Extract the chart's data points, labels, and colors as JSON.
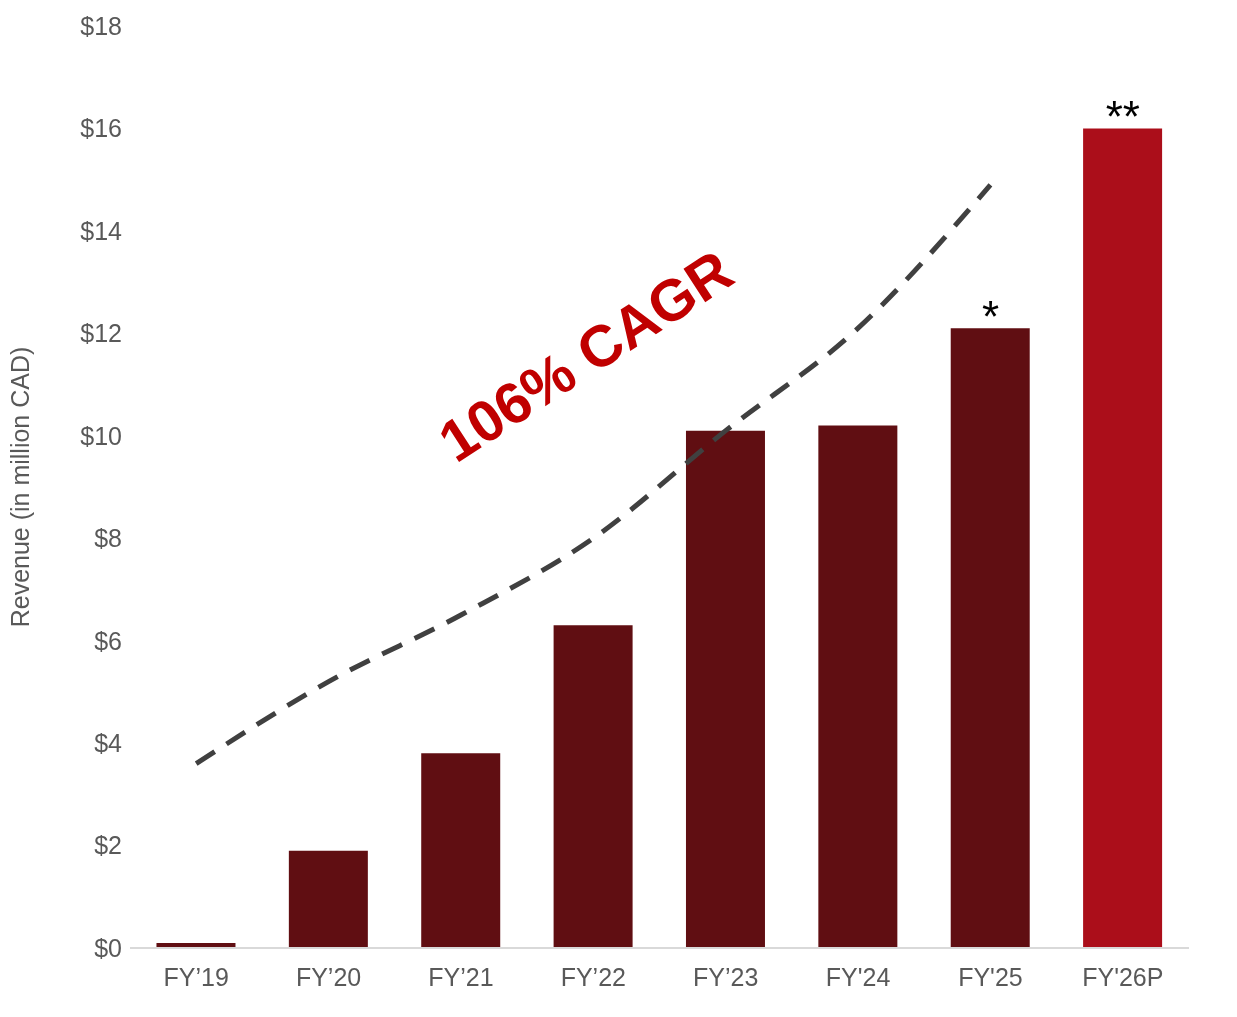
{
  "chart_data": {
    "type": "bar",
    "ylabel": "Revenue (in million CAD)",
    "categories": [
      "FY’19",
      "FY’20",
      "FY’21",
      "FY’22",
      "FY’23",
      "FY'24",
      "FY'25",
      "FY'26P"
    ],
    "series": [
      {
        "colors": [
          "#600e12",
          "#600e12",
          "#600e12",
          "#600e12",
          "#600e12",
          "#600e12",
          "#600e12",
          "#ab0e1a"
        ],
        "values": [
          0.1,
          1.9,
          3.8,
          6.3,
          10.1,
          10.2,
          12.1,
          16.0
        ]
      },
      {
        "type": "line",
        "color": "#404040",
        "line_style": "dashed",
        "values": [
          3.6,
          5.2,
          6.5,
          8.0,
          10.1,
          12.1,
          14.9,
          null
        ]
      }
    ],
    "ylim": [
      0,
      18
    ],
    "yticks": [
      {
        "value": 0,
        "label": "$0"
      },
      {
        "value": 2,
        "label": "$2"
      },
      {
        "value": 4,
        "label": "$4"
      },
      {
        "value": 6,
        "label": "$6"
      },
      {
        "value": 8,
        "label": "$8"
      },
      {
        "value": 10,
        "label": "$10"
      },
      {
        "value": 12,
        "label": "$12"
      },
      {
        "value": 14,
        "label": "$14"
      },
      {
        "value": 16,
        "label": "$16"
      },
      {
        "value": 18,
        "label": "$18"
      }
    ],
    "grid": false,
    "legend": false,
    "marker": "none",
    "annotations": [
      "106% CAGR",
      {
        "text": "*",
        "x": "FY'25",
        "y": 12.1
      },
      {
        "text": "**",
        "x": "FY'26P",
        "y": 16.0
      }
    ]
  }
}
